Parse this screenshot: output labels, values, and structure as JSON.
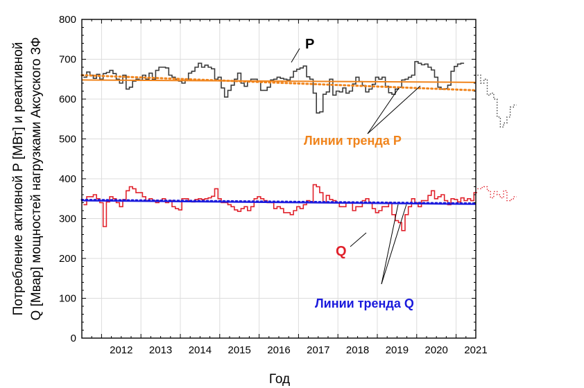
{
  "chart_data": {
    "type": "line",
    "xlabel": "Год",
    "ylabel_line1": "Потребление активной P [МВт] и реактивной",
    "ylabel_line2": "Q [Мвар] мощностей нагрузками Аксуского ЗФ",
    "xlim": [
      2011.5,
      2021.5
    ],
    "ylim": [
      0,
      800
    ],
    "x_tick_labels": [
      "2012",
      "2013",
      "2014",
      "2015",
      "2016",
      "2017",
      "2018",
      "2019",
      "2020",
      "2021"
    ],
    "y_tick_labels": [
      "0",
      "100",
      "200",
      "300",
      "400",
      "500",
      "600",
      "700",
      "800"
    ],
    "x_step": 0.0833,
    "colors": {
      "p": "#3a3a3a",
      "q": "#e0202a",
      "trend_p": "#f0841c",
      "trend_q": "#1a1adc"
    },
    "series": [
      {
        "name": "P",
        "x_start": 2011.54,
        "values": [
          655,
          668,
          660,
          652,
          662,
          650,
          664,
          667,
          672,
          664,
          650,
          640,
          660,
          625,
          630,
          645,
          650,
          648,
          660,
          650,
          665,
          650,
          672,
          680,
          680,
          678,
          660,
          655,
          650,
          645,
          640,
          650,
          665,
          670,
          680,
          690,
          680,
          685,
          680,
          676,
          650,
          655,
          628,
          605,
          622,
          635,
          650,
          665,
          640,
          632,
          645,
          650,
          650,
          645,
          622,
          622,
          630,
          648,
          650,
          655,
          652,
          650,
          648,
          655,
          670,
          675,
          678,
          683,
          656,
          650,
          615,
          565,
          568,
          612,
          618,
          650,
          610,
          620,
          618,
          628,
          615,
          620,
          638,
          655,
          644,
          634,
          618,
          625,
          637,
          655,
          650,
          655,
          632,
          616,
          612,
          625,
          630,
          648,
          650,
          655,
          660,
          694,
          690,
          686,
          688,
          680,
          673,
          655,
          630,
          625,
          626,
          635,
          670,
          682,
          688,
          690
        ]
      },
      {
        "name": "P forecast",
        "x_start": 2021.54,
        "values": [
          660,
          640,
          650,
          610,
          615,
          600,
          555,
          530,
          540,
          555,
          580,
          585
        ]
      },
      {
        "name": "Q",
        "x_start": 2011.54,
        "values": [
          335,
          355,
          355,
          360,
          350,
          340,
          280,
          342,
          355,
          350,
          340,
          330,
          348,
          370,
          380,
          375,
          365,
          365,
          355,
          345,
          350,
          345,
          340,
          345,
          350,
          340,
          345,
          330,
          325,
          322,
          350,
          350,
          345,
          342,
          348,
          350,
          348,
          350,
          352,
          356,
          375,
          350,
          340,
          340,
          335,
          330,
          322,
          318,
          325,
          330,
          320,
          330,
          350,
          355,
          350,
          345,
          340,
          340,
          325,
          330,
          325,
          315,
          315,
          310,
          320,
          330,
          325,
          335,
          345,
          342,
          385,
          380,
          365,
          340,
          358,
          348,
          345,
          340,
          330,
          330,
          340,
          340,
          320,
          330,
          330,
          345,
          350,
          340,
          325,
          315,
          320,
          330,
          330,
          340,
          310,
          295,
          290,
          270,
          310,
          330,
          350,
          340,
          330,
          345,
          345,
          358,
          370,
          350,
          355,
          360,
          345,
          335,
          350,
          348,
          342,
          352,
          345,
          350,
          345,
          365
        ]
      },
      {
        "name": "Q forecast",
        "x_start": 2021.54,
        "values": [
          375,
          378,
          380,
          370,
          352,
          368,
          360,
          352,
          370,
          345,
          348,
          355
        ]
      },
      {
        "name": "Trend P (linear)",
        "x": [
          2011.5,
          2021.5
        ],
        "values": [
          648,
          642
        ]
      },
      {
        "name": "Trend P (dotted)",
        "x": [
          2011.5,
          2021.5
        ],
        "values": [
          660,
          622
        ]
      },
      {
        "name": "Trend Q (linear)",
        "x": [
          2011.5,
          2021.5
        ],
        "values": [
          345,
          336
        ]
      },
      {
        "name": "Trend Q (dotted)",
        "x": [
          2011.5,
          2021.5
        ],
        "values": [
          347,
          338
        ]
      }
    ],
    "annotations": {
      "p_label": "P",
      "q_label": "Q",
      "trend_p_label": "Линии тренда P",
      "trend_q_label": "Линии тренда Q"
    }
  }
}
